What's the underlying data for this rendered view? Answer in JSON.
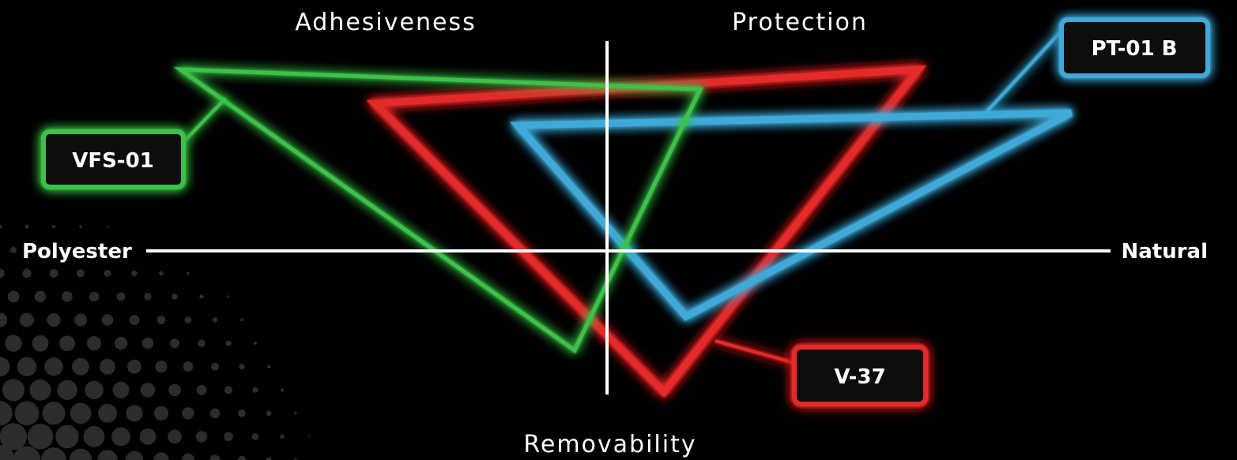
{
  "axes": {
    "top_left": "Adhesiveness",
    "top_right": "Protection",
    "bottom": "Removability",
    "left": "Polyester",
    "right": "Natural"
  },
  "products": [
    {
      "name": "VFS-01",
      "color": "#3ec24a"
    },
    {
      "name": "V-37",
      "color": "#e5292b"
    },
    {
      "name": "PT-01 B",
      "color": "#3fa9d8"
    }
  ],
  "colors": {
    "background": "#000000",
    "axis_lines": "#ffffff",
    "decor_dots": "#2c2c2c"
  }
}
